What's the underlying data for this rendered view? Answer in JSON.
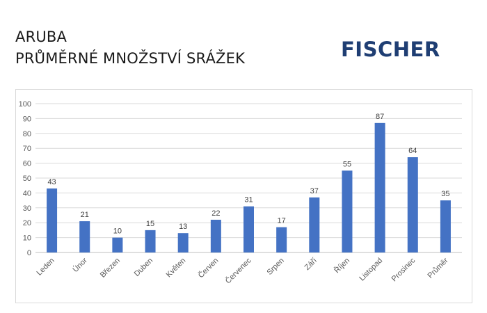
{
  "header": {
    "title_line1": "ARUBA",
    "title_line2": "PRŮMĚRNÉ MNOŽSTVÍ SRÁŽEK"
  },
  "brand": {
    "logo_text": "FISCHER",
    "logo_color": "#1f3e73"
  },
  "chart_data": {
    "type": "bar",
    "title": "",
    "xlabel": "",
    "ylabel": "",
    "categories": [
      "Leden",
      "Únor",
      "Březen",
      "Duben",
      "Květen",
      "Červen",
      "Červenec",
      "Srpen",
      "Září",
      "Říjen",
      "Listopad",
      "Prosinec",
      "Průměr"
    ],
    "values": [
      43,
      21,
      10,
      15,
      13,
      22,
      31,
      17,
      37,
      55,
      87,
      64,
      35
    ],
    "ylim": [
      0,
      100
    ],
    "yticks": [
      0,
      10,
      20,
      30,
      40,
      50,
      60,
      70,
      80,
      90,
      100
    ],
    "grid": true,
    "legend": "none",
    "bar_color": "#4472c4"
  }
}
